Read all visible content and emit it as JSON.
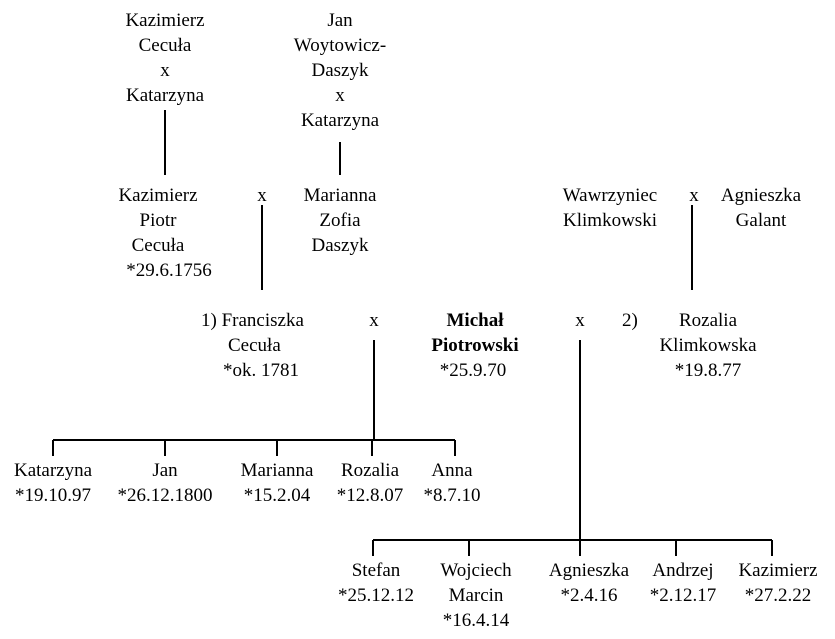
{
  "ancestors": {
    "cecula_parents": [
      "Kazimierz",
      "Cecuła",
      "x",
      "Katarzyna"
    ],
    "daszyk_parents": [
      "Jan",
      "Woytowicz-",
      "Daszyk",
      "x",
      "Katarzyna"
    ]
  },
  "parents": {
    "kazimierz_piotr": [
      "Kazimierz",
      "Piotr",
      "Cecuła",
      "*29.6.1756"
    ],
    "marianna_zofia": [
      "Marianna",
      "Zofia",
      "Daszyk"
    ],
    "marriage_1": "x",
    "wawrzyniec": [
      "Wawrzyniec",
      "Klimkowski"
    ],
    "agnieszka_galant": [
      "Agnieszka",
      "Galant"
    ],
    "marriage_2": "x"
  },
  "main": {
    "franciszka": [
      "1) Franciszka",
      "Cecuła",
      "*ok. 1781"
    ],
    "michal": [
      "Michał",
      "Piotrowski"
    ],
    "michal_birth": "*25.9.70",
    "rozalia": [
      "Rozalia",
      "Klimkowska",
      "*19.8.77"
    ],
    "marker_1": "x",
    "marker_2": "x",
    "second_wife_prefix": "2)"
  },
  "children_first": [
    [
      "Katarzyna",
      "*19.10.97"
    ],
    [
      "Jan",
      "*26.12.1800"
    ],
    [
      "Marianna",
      "*15.2.04"
    ],
    [
      "Rozalia",
      "*12.8.07"
    ],
    [
      "Anna",
      "*8.7.10"
    ]
  ],
  "children_second": [
    [
      "Stefan",
      "*25.12.12"
    ],
    [
      "Wojciech",
      "Marcin",
      "*16.4.14"
    ],
    [
      "Agnieszka",
      "*2.4.16"
    ],
    [
      "Andrzej",
      "*2.12.17"
    ],
    [
      "Kazimierz",
      "*27.2.22"
    ]
  ]
}
